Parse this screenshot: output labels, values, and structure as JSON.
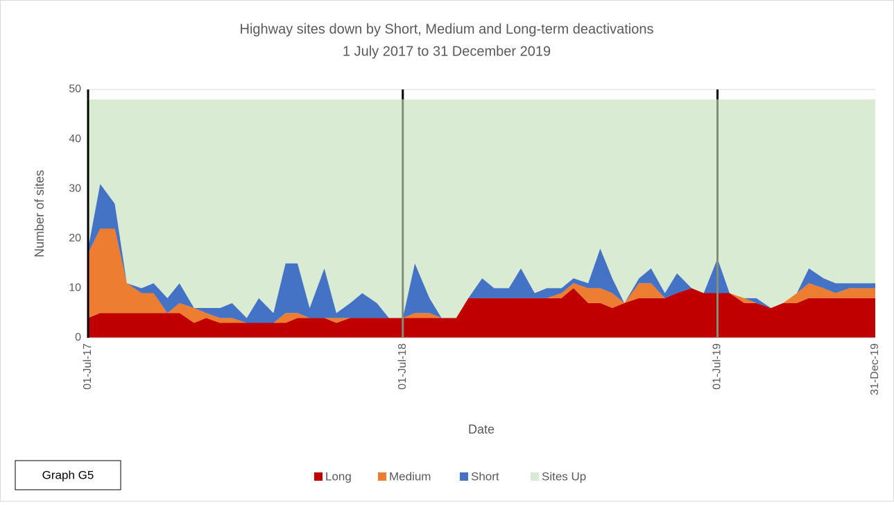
{
  "chart_data": {
    "type": "stacked_area",
    "title": "Highway sites down by Short, Medium and Long-term deactivations",
    "subtitle": "1 July 2017 to 31 December 2019",
    "x_label": "Date",
    "y_label": "Number of sites",
    "annotation": "Graph G5",
    "x": [
      "2017-07-01",
      "2017-07-15",
      "2017-08-01",
      "2017-08-15",
      "2017-09-01",
      "2017-09-15",
      "2017-10-01",
      "2017-10-15",
      "2017-11-01",
      "2017-11-15",
      "2017-12-01",
      "2017-12-15",
      "2018-01-01",
      "2018-01-15",
      "2018-02-01",
      "2018-02-15",
      "2018-03-01",
      "2018-03-15",
      "2018-04-01",
      "2018-04-15",
      "2018-05-01",
      "2018-05-15",
      "2018-06-01",
      "2018-06-15",
      "2018-07-01",
      "2018-07-15",
      "2018-08-01",
      "2018-08-15",
      "2018-09-01",
      "2018-09-15",
      "2018-10-01",
      "2018-10-15",
      "2018-11-01",
      "2018-11-15",
      "2018-12-01",
      "2018-12-15",
      "2019-01-01",
      "2019-01-15",
      "2019-02-01",
      "2019-02-15",
      "2019-03-01",
      "2019-03-15",
      "2019-04-01",
      "2019-04-15",
      "2019-05-01",
      "2019-05-15",
      "2019-06-01",
      "2019-06-15",
      "2019-07-01",
      "2019-07-15",
      "2019-08-01",
      "2019-08-15",
      "2019-09-01",
      "2019-09-15",
      "2019-10-01",
      "2019-10-15",
      "2019-11-01",
      "2019-11-15",
      "2019-12-01",
      "2019-12-15",
      "2019-12-31"
    ],
    "series": [
      {
        "name": "Long",
        "color": "#c00000",
        "values": [
          4,
          5,
          5,
          5,
          5,
          5,
          5,
          5,
          3,
          4,
          3,
          3,
          3,
          3,
          3,
          3,
          4,
          4,
          4,
          3,
          4,
          4,
          4,
          4,
          4,
          4,
          4,
          4,
          4,
          8,
          8,
          8,
          8,
          8,
          8,
          8,
          8,
          10,
          7,
          7,
          6,
          7,
          8,
          8,
          8,
          9,
          10,
          9,
          9,
          9,
          7,
          7,
          6,
          7,
          7,
          8,
          8,
          8,
          8,
          8,
          8
        ]
      },
      {
        "name": "Medium",
        "color": "#ed7d31",
        "values": [
          13,
          17,
          17,
          6,
          4,
          4,
          0,
          2,
          3,
          1,
          1,
          1,
          0,
          0,
          0,
          2,
          1,
          0,
          0,
          1,
          0,
          0,
          0,
          0,
          0,
          1,
          1,
          0,
          0,
          0,
          0,
          0,
          0,
          0,
          0,
          0,
          1,
          1,
          3,
          3,
          3,
          0,
          3,
          3,
          0,
          0,
          0,
          0,
          0,
          0,
          1,
          0,
          0,
          0,
          2,
          3,
          2,
          1,
          2,
          2,
          2
        ]
      },
      {
        "name": "Short",
        "color": "#4472c4",
        "values": [
          1,
          9,
          5,
          0,
          1,
          2,
          3,
          4,
          0,
          1,
          2,
          3,
          1,
          5,
          2,
          10,
          10,
          2,
          10,
          1,
          3,
          5,
          3,
          0,
          0,
          10,
          3,
          0,
          0,
          0,
          4,
          2,
          2,
          6,
          1,
          2,
          1,
          1,
          1,
          8,
          3,
          0,
          1,
          3,
          1,
          4,
          0,
          0,
          7,
          0,
          0,
          1,
          0,
          0,
          0,
          3,
          2,
          2,
          1,
          1,
          1
        ]
      },
      {
        "name": "Sites Up",
        "color": "#d9ebd3",
        "values": [
          30,
          17,
          21,
          37,
          38,
          37,
          40,
          37,
          42,
          42,
          42,
          41,
          44,
          40,
          43,
          33,
          33,
          42,
          34,
          43,
          41,
          39,
          41,
          44,
          44,
          33,
          40,
          44,
          44,
          40,
          36,
          38,
          38,
          34,
          39,
          38,
          38,
          36,
          37,
          30,
          36,
          41,
          36,
          34,
          39,
          35,
          38,
          39,
          32,
          39,
          40,
          40,
          42,
          41,
          39,
          34,
          36,
          37,
          37,
          37,
          37
        ]
      }
    ],
    "xlim": [
      "2017-07-01",
      "2019-12-31"
    ],
    "xticks": [
      {
        "value": "2017-07-01",
        "label": "01-Jul-17"
      },
      {
        "value": "2018-07-01",
        "label": "01-Jul-18"
      },
      {
        "value": "2019-07-01",
        "label": "01-Jul-19"
      },
      {
        "value": "2019-12-31",
        "label": "31-Dec-19"
      }
    ],
    "ylim": [
      0,
      50
    ],
    "yticks": [
      0,
      10,
      20,
      30,
      40,
      50
    ],
    "grid": true,
    "legend": "bottom"
  }
}
